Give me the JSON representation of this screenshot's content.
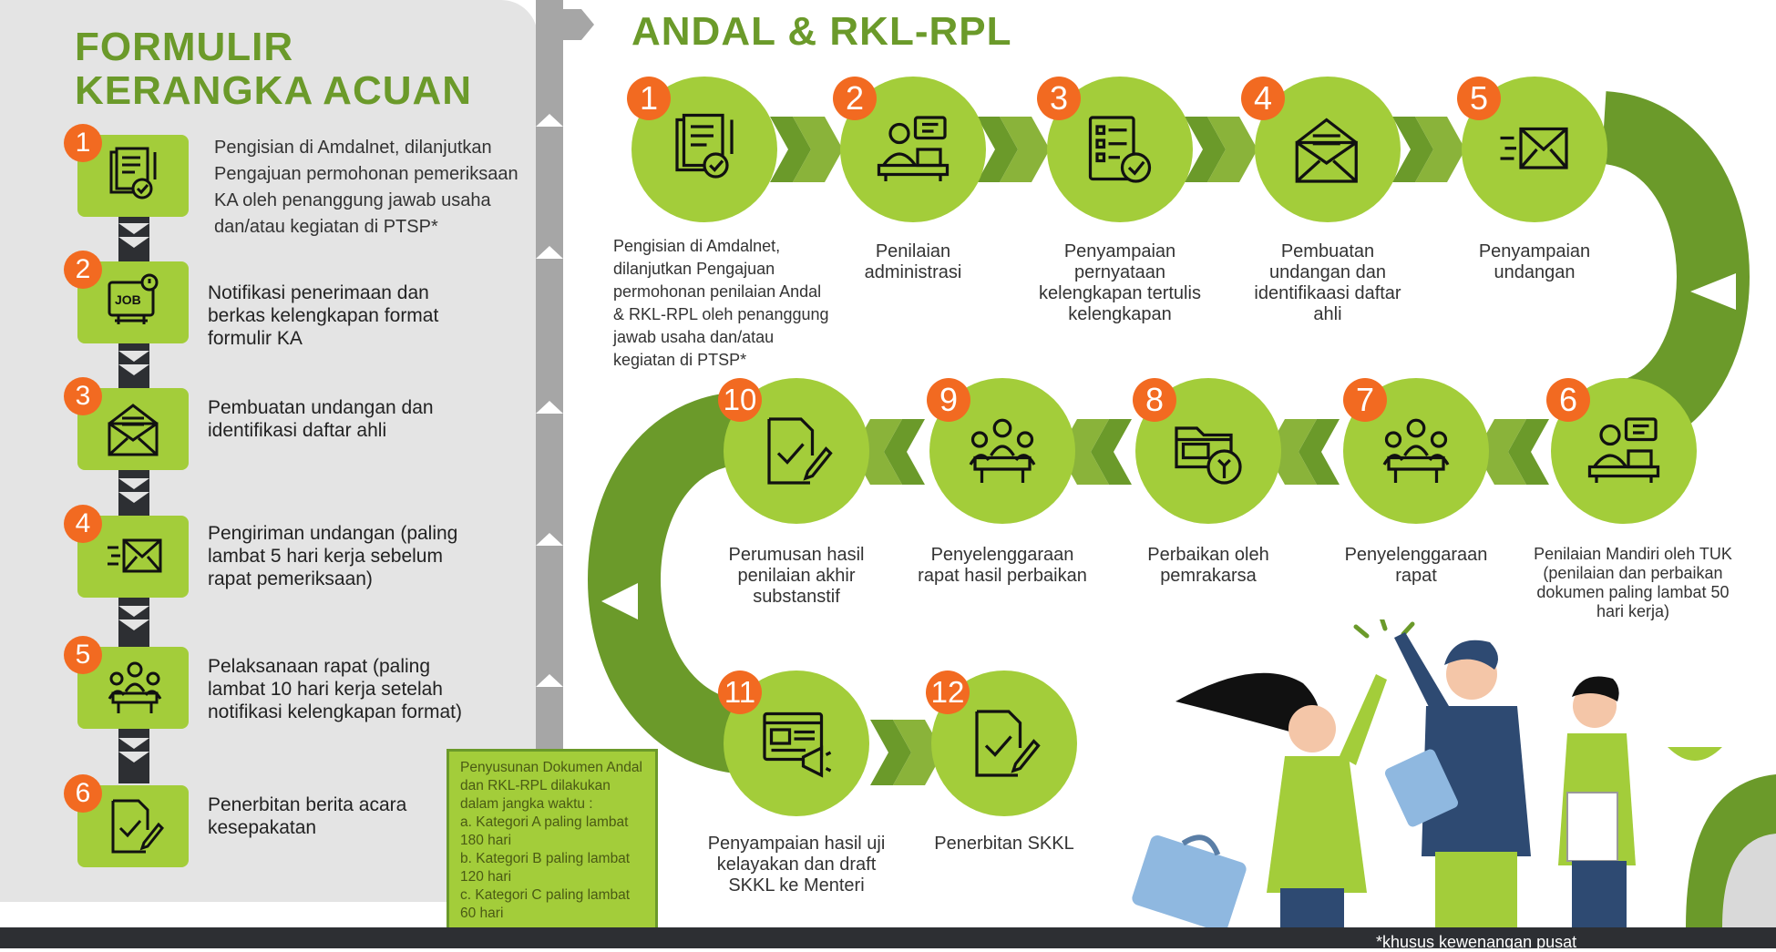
{
  "left": {
    "title_line1": "FORMULIR",
    "title_line2": "KERANGKA ACUAN",
    "steps": [
      {
        "num": "1",
        "text": "Pengisian di Amdalnet, dilanjutkan Pengajuan permohonan pemeriksaan KA oleh penanggung jawab usaha dan/atau kegiatan  di PTSP*",
        "icon": "document-check-icon"
      },
      {
        "num": "2",
        "text": "Notifikasi penerimaan dan berkas kelengkapan format formulir KA",
        "icon": "job-board-icon"
      },
      {
        "num": "3",
        "text": "Pembuatan undangan dan identifikasi daftar ahli",
        "icon": "envelope-open-icon"
      },
      {
        "num": "4",
        "text": "Pengiriman undangan (paling lambat 5 hari kerja sebelum rapat pemeriksaan)",
        "icon": "fast-mail-icon"
      },
      {
        "num": "5",
        "text": "Pelaksanaan rapat (paling lambat 10 hari kerja setelah notifikasi kelengkapan format)",
        "icon": "meeting-icon"
      },
      {
        "num": "6",
        "text": "Penerbitan berita acara kesepakatan",
        "icon": "sign-document-icon"
      }
    ]
  },
  "right": {
    "title": "ANDAL & RKL-RPL",
    "steps": [
      {
        "num": "1",
        "text": "Pengisian di Amdalnet, dilanjutkan Pengajuan permohonan penilaian Andal & RKL-RPL oleh penanggung jawab usaha dan/atau kegiatan  di PTSP*",
        "icon": "document-check-icon"
      },
      {
        "num": "2",
        "text": "Penilaian administrasi",
        "icon": "online-worker-icon"
      },
      {
        "num": "3",
        "text": "Penyampaian pernyataan kelengkapan tertulis kelengkapan",
        "icon": "checklist-icon"
      },
      {
        "num": "4",
        "text": "Pembuatan undangan dan identifikaasi daftar ahli",
        "icon": "envelope-open-icon"
      },
      {
        "num": "5",
        "text": "Penyampaian undangan",
        "icon": "fast-mail-icon"
      },
      {
        "num": "6",
        "text": "Penilaian Mandiri oleh TUK (penilaian dan perbaikan dokumen paling lambat 50 hari kerja)",
        "icon": "online-worker-icon"
      },
      {
        "num": "7",
        "text": "Penyelenggaraan rapat",
        "icon": "meeting-icon"
      },
      {
        "num": "8",
        "text": "Perbaikan oleh pemrakarsa",
        "icon": "folder-repair-icon"
      },
      {
        "num": "9",
        "text": "Penyelenggaraan rapat hasil perbaikan",
        "icon": "meeting-icon"
      },
      {
        "num": "10",
        "text": "Perumusan hasil penilaian akhir substanstif",
        "icon": "sign-document-icon"
      },
      {
        "num": "11",
        "text": "Penyampaian hasil uji kelayakan dan draft SKKL ke Menteri",
        "icon": "announcement-icon"
      },
      {
        "num": "12",
        "text": "Penerbitan SKKL",
        "icon": "sign-document-icon"
      }
    ]
  },
  "note": {
    "lines": [
      "Penyusunan Dokumen Andal dan RKL-RPL dilakukan dalam jangka waktu :",
      "a. Kategori A paling lambat 180 hari",
      "b. Kategori B paling lambat 120 hari",
      "c. Kategori C paling lambat 60 hari"
    ]
  },
  "footnote": "*khusus kewenangan pusat",
  "colors": {
    "green": "#a3cd3a",
    "dark_green": "#6b9a2a",
    "orange": "#f26a21",
    "dark": "#2d2f33",
    "grey": "#e4e4e4"
  }
}
